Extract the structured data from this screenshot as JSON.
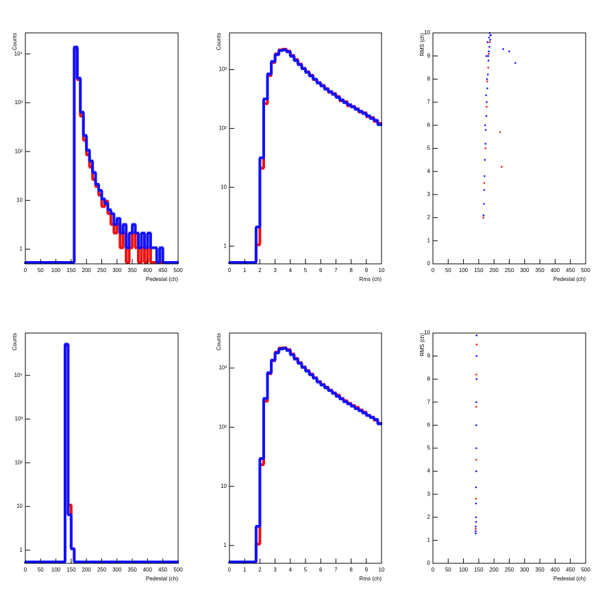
{
  "chart_data": [
    {
      "type": "histogram",
      "x_label": "Pedestal (ch)",
      "y_label": "Counts",
      "log_y": true,
      "bins": [
        0,
        10,
        20,
        30,
        40,
        50,
        60,
        70,
        80,
        90,
        100,
        110,
        120,
        130,
        140,
        150,
        160,
        170,
        180,
        190,
        200,
        210,
        220,
        230,
        240,
        250,
        260,
        270,
        280,
        290,
        300,
        310,
        320,
        330,
        340,
        350,
        360,
        370,
        380,
        390,
        400,
        410,
        420,
        430,
        440,
        450,
        460,
        470,
        480,
        490,
        500
      ],
      "xlim": [
        0,
        500
      ],
      "xticks": [
        0,
        50,
        100,
        150,
        200,
        250,
        300,
        350,
        400,
        450,
        500
      ],
      "ylim": [
        0.5,
        27000
      ],
      "yticks": [
        1,
        10,
        {
          "value": 100,
          "label": "10²"
        },
        {
          "value": 1000,
          "label": "10³"
        },
        {
          "value": 10000,
          "label": "10⁴"
        }
      ],
      "series": [
        {
          "color": "#ee1111",
          "values": [
            0,
            0,
            0,
            0,
            0,
            0,
            0,
            0,
            0,
            0,
            0,
            0,
            0,
            0,
            0,
            0,
            12000,
            2800,
            500,
            160,
            80,
            45,
            25,
            18,
            12,
            7,
            9,
            5,
            3,
            2,
            3,
            1,
            2,
            0,
            1,
            2,
            1,
            0,
            1,
            0,
            1,
            0,
            0,
            0,
            0,
            0,
            0,
            0,
            0,
            0
          ]
        },
        {
          "color": "#1111ff",
          "values": [
            0,
            0,
            0,
            0,
            0,
            0,
            0,
            0,
            0,
            0,
            0,
            0,
            0,
            0,
            0,
            0,
            13000,
            3000,
            600,
            200,
            100,
            60,
            35,
            20,
            15,
            10,
            8,
            6,
            5,
            3,
            4,
            2,
            3,
            1,
            2,
            3,
            2,
            1,
            2,
            1,
            2,
            1,
            1,
            0,
            1,
            0,
            0,
            0,
            0,
            0
          ]
        }
      ]
    },
    {
      "type": "histogram",
      "x_label": "Rms (ch)",
      "y_label": "Counts",
      "log_y": true,
      "bins": [
        0,
        0.25,
        0.5,
        0.75,
        1,
        1.25,
        1.5,
        1.75,
        2,
        2.25,
        2.5,
        2.75,
        3,
        3.25,
        3.5,
        3.75,
        4,
        4.25,
        4.5,
        4.75,
        5,
        5.25,
        5.5,
        5.75,
        6,
        6.25,
        6.5,
        6.75,
        7,
        7.25,
        7.5,
        7.75,
        8,
        8.25,
        8.5,
        8.75,
        9,
        9.25,
        9.5,
        9.75,
        10
      ],
      "xlim": [
        0,
        10
      ],
      "xticks": [
        0,
        1,
        2,
        3,
        4,
        5,
        6,
        7,
        8,
        9,
        10
      ],
      "ylim": [
        0.5,
        4200
      ],
      "yticks": [
        1,
        10,
        {
          "value": 100,
          "label": "10²"
        },
        {
          "value": 1000,
          "label": "10³"
        }
      ],
      "series": [
        {
          "color": "#ee1111",
          "values": [
            0,
            0,
            0,
            0,
            0,
            0,
            0,
            1,
            20,
            250,
            750,
            1250,
            1750,
            2050,
            2100,
            1950,
            1650,
            1400,
            1180,
            1000,
            870,
            760,
            640,
            570,
            510,
            450,
            390,
            370,
            330,
            280,
            270,
            230,
            225,
            205,
            180,
            175,
            150,
            145,
            125,
            115
          ]
        },
        {
          "color": "#1111ff",
          "values": [
            0,
            0,
            0,
            0,
            0,
            0,
            0,
            2,
            30,
            300,
            800,
            1300,
            1700,
            2000,
            2050,
            1900,
            1600,
            1350,
            1150,
            980,
            850,
            740,
            650,
            560,
            500,
            440,
            400,
            360,
            320,
            290,
            260,
            240,
            220,
            200,
            185,
            170,
            155,
            140,
            130,
            110
          ]
        }
      ]
    },
    {
      "type": "scatter",
      "x_label": "Pedestal (ch)",
      "y_label": "RMS (ch)",
      "xlim": [
        0,
        500
      ],
      "xticks": [
        0,
        50,
        100,
        150,
        200,
        250,
        300,
        350,
        400,
        450,
        500
      ],
      "ylim": [
        0,
        10
      ],
      "yticks": [
        0,
        1,
        2,
        3,
        4,
        5,
        6,
        7,
        8,
        9,
        10
      ],
      "series": [
        {
          "color": "#ee1111",
          "x": [
            165,
            168,
            172,
            176,
            181,
            186,
            178,
            183,
            220,
            225
          ],
          "values": [
            2.0,
            3.5,
            5.0,
            6.8,
            8.5,
            9.6,
            7.9,
            9.1,
            5.7,
            4.2
          ]
        },
        {
          "color": "#1111ff",
          "x": [
            166,
            167,
            168,
            169,
            170,
            172,
            173,
            175,
            176,
            178,
            180,
            182,
            185,
            188,
            175,
            179,
            183,
            187,
            190,
            250,
            270,
            230,
            171,
            174,
            177,
            181,
            184,
            186
          ],
          "values": [
            2.1,
            2.6,
            3.2,
            3.8,
            4.5,
            5.2,
            5.8,
            6.4,
            7.0,
            7.6,
            8.2,
            8.8,
            9.4,
            9.9,
            9.0,
            9.6,
            9.2,
            9.7,
            9.9,
            9.2,
            8.7,
            9.3,
            6.0,
            7.3,
            8.0,
            9.0,
            9.8,
            10.0
          ]
        }
      ]
    },
    {
      "type": "histogram",
      "x_label": "Pedestal (ch)",
      "y_label": "Counts",
      "log_y": true,
      "bins": [
        0,
        10,
        20,
        30,
        40,
        50,
        60,
        70,
        80,
        90,
        100,
        110,
        120,
        130,
        140,
        150,
        160,
        170,
        180,
        190,
        200,
        210,
        220,
        230,
        240,
        250,
        260,
        270,
        280,
        290,
        300,
        310,
        320,
        330,
        340,
        350,
        360,
        370,
        380,
        390,
        400,
        410,
        420,
        430,
        440,
        450,
        460,
        470,
        480,
        490,
        500
      ],
      "xlim": [
        0,
        500
      ],
      "xticks": [
        0,
        50,
        100,
        150,
        200,
        250,
        300,
        350,
        400,
        450,
        500
      ],
      "ylim": [
        0.5,
        93000
      ],
      "yticks": [
        1,
        10,
        {
          "value": 100,
          "label": "10²"
        },
        {
          "value": 1000,
          "label": "10³"
        },
        {
          "value": 10000,
          "label": "10⁴"
        }
      ],
      "series": [
        {
          "color": "#ee1111",
          "values": [
            0,
            0,
            0,
            0,
            0,
            0,
            0,
            0,
            0,
            0,
            0,
            0,
            0,
            45000,
            10,
            1,
            0,
            0,
            0,
            0,
            0,
            0,
            0,
            0,
            0,
            0,
            0,
            0,
            0,
            0,
            0,
            0,
            0,
            0,
            0,
            0,
            0,
            0,
            0,
            0,
            0,
            0,
            0,
            0,
            0,
            0,
            0,
            0,
            0,
            0
          ]
        },
        {
          "color": "#1111ff",
          "values": [
            0,
            0,
            0,
            0,
            0,
            0,
            0,
            0,
            0,
            0,
            0,
            0,
            0,
            48000,
            6,
            1,
            0,
            0,
            0,
            0,
            0,
            0,
            0,
            0,
            0,
            0,
            0,
            0,
            0,
            0,
            0,
            0,
            0,
            0,
            0,
            0,
            0,
            0,
            0,
            0,
            0,
            0,
            0,
            0,
            0,
            0,
            0,
            0,
            0,
            0
          ]
        }
      ]
    },
    {
      "type": "histogram",
      "x_label": "Rms (ch)",
      "y_label": "Counts",
      "log_y": true,
      "bins": [
        0,
        0.25,
        0.5,
        0.75,
        1,
        1.25,
        1.5,
        1.75,
        2,
        2.25,
        2.5,
        2.75,
        3,
        3.25,
        3.5,
        3.75,
        4,
        4.25,
        4.5,
        4.75,
        5,
        5.25,
        5.5,
        5.75,
        6,
        6.25,
        6.5,
        6.75,
        7,
        7.25,
        7.5,
        7.75,
        8,
        8.25,
        8.5,
        8.75,
        9,
        9.25,
        9.5,
        9.75,
        10
      ],
      "xlim": [
        0,
        10
      ],
      "xticks": [
        0,
        1,
        2,
        3,
        4,
        5,
        6,
        7,
        8,
        9,
        10
      ],
      "ylim": [
        0.5,
        3900
      ],
      "yticks": [
        1,
        10,
        {
          "value": 100,
          "label": "10²"
        },
        {
          "value": 1000,
          "label": "10³"
        }
      ],
      "series": [
        {
          "color": "#ee1111",
          "values": [
            0,
            0,
            0,
            0,
            0,
            0,
            0,
            1,
            22,
            260,
            760,
            1260,
            1760,
            2060,
            2080,
            1940,
            1640,
            1380,
            1170,
            990,
            860,
            750,
            650,
            560,
            500,
            450,
            400,
            360,
            330,
            290,
            265,
            240,
            220,
            205,
            185,
            170,
            150,
            140,
            125,
            110
          ]
        },
        {
          "color": "#1111ff",
          "values": [
            0,
            0,
            0,
            0,
            0,
            0,
            0,
            2,
            28,
            290,
            790,
            1290,
            1710,
            1990,
            2040,
            1880,
            1590,
            1340,
            1140,
            970,
            840,
            730,
            640,
            550,
            490,
            440,
            395,
            355,
            315,
            285,
            255,
            235,
            215,
            195,
            180,
            165,
            150,
            138,
            128,
            108
          ]
        }
      ]
    },
    {
      "type": "scatter",
      "x_label": "Pedestal (ch)",
      "y_label": "RMS (ch)",
      "xlim": [
        0,
        500
      ],
      "xticks": [
        0,
        50,
        100,
        150,
        200,
        250,
        300,
        350,
        400,
        450,
        500
      ],
      "ylim": [
        0,
        10
      ],
      "yticks": [
        0,
        1,
        2,
        3,
        4,
        5,
        6,
        7,
        8,
        9,
        10
      ],
      "series": [
        {
          "color": "#ee1111",
          "x": [
            140,
            141,
            142,
            142,
            143,
            142
          ],
          "values": [
            1.5,
            2.8,
            4.5,
            6.8,
            9.5,
            8.2
          ]
        },
        {
          "color": "#1111ff",
          "x": [
            140,
            140,
            141,
            141,
            141,
            142,
            142,
            142,
            142,
            143,
            143,
            143,
            140,
            141
          ],
          "values": [
            1.3,
            1.6,
            2.0,
            2.6,
            3.3,
            4.0,
            5.0,
            6.0,
            7.0,
            8.0,
            9.0,
            9.9,
            1.4,
            1.8
          ]
        }
      ]
    }
  ]
}
